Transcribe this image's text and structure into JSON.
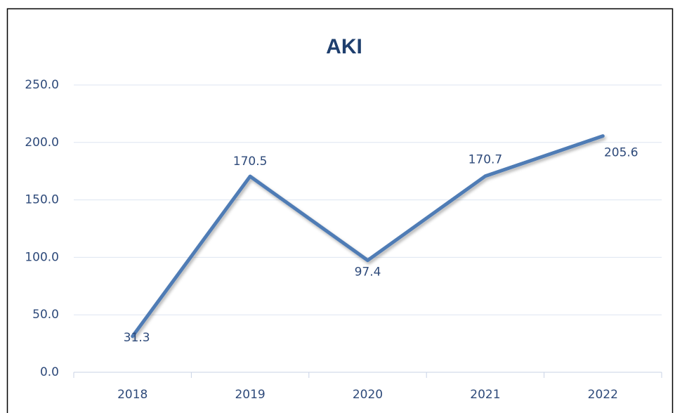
{
  "chart_data": {
    "type": "line",
    "title": "AKI",
    "categories": [
      "2018",
      "2019",
      "2020",
      "2021",
      "2022"
    ],
    "series": [
      {
        "name": "AKI",
        "color": "#4f7bb5",
        "values": [
          31.3,
          170.5,
          97.4,
          170.7,
          205.6
        ]
      }
    ],
    "ylim": [
      0,
      250
    ],
    "yticks": [
      {
        "value": 0,
        "label": "0.0"
      },
      {
        "value": 50,
        "label": "50.0"
      },
      {
        "value": 100,
        "label": "100.0"
      },
      {
        "value": 150,
        "label": "150.0"
      },
      {
        "value": 200,
        "label": "200.0"
      },
      {
        "value": 250,
        "label": "250.0"
      }
    ],
    "grid": true
  }
}
